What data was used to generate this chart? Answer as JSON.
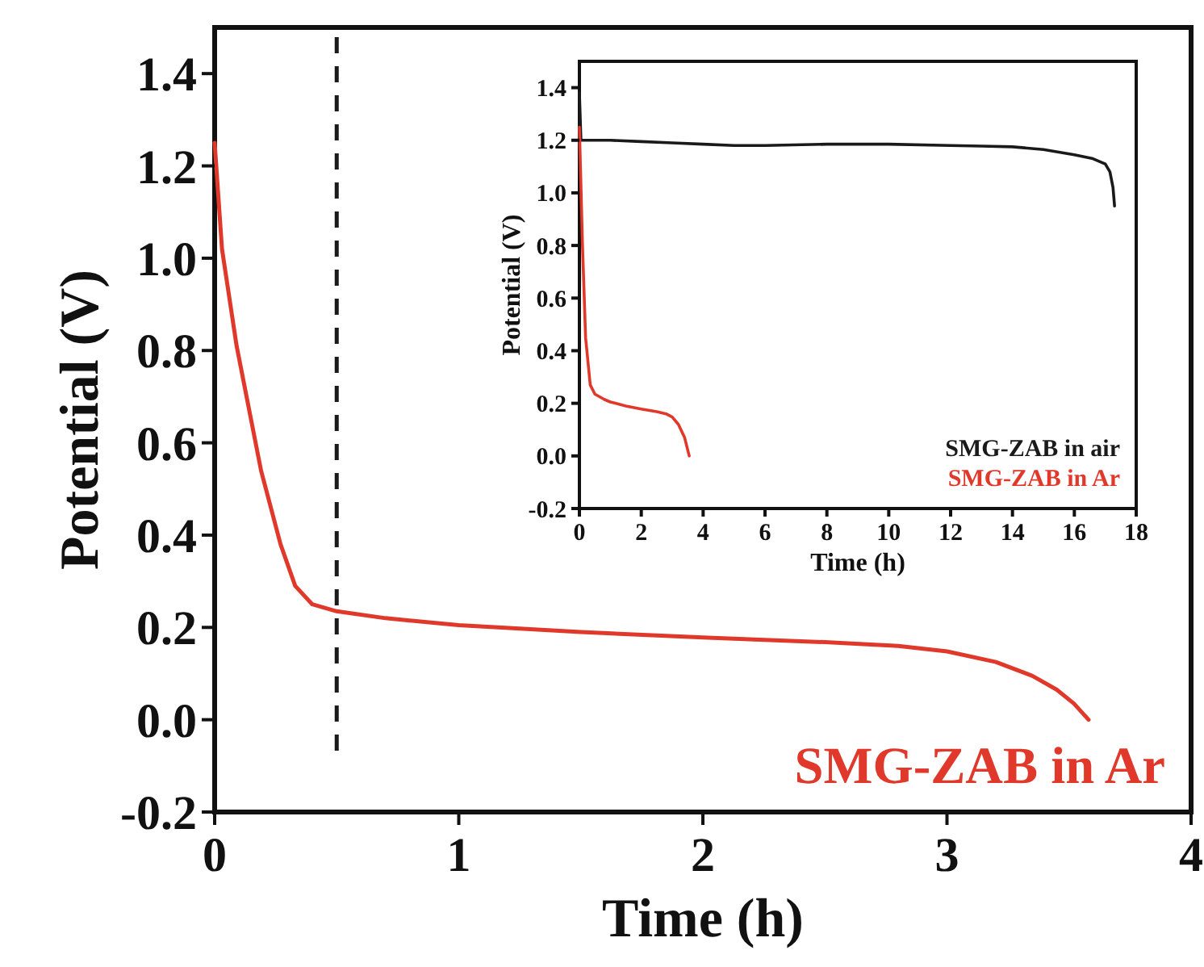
{
  "chart_data": [
    {
      "type": "line",
      "xlabel": "Time (h)",
      "ylabel": "Potential (V)",
      "xlim": [
        0,
        4
      ],
      "ylim": [
        -0.2,
        1.5
      ],
      "xticks": [
        0,
        1,
        2,
        3,
        4
      ],
      "yticks": [
        {
          "value": -0.2,
          "label": "-0.2"
        },
        {
          "value": 0,
          "label": "0.0"
        },
        {
          "value": 0.2,
          "label": "0.2"
        },
        {
          "value": 0.4,
          "label": "0.4"
        },
        {
          "value": 0.6,
          "label": "0.6"
        },
        {
          "value": 0.8,
          "label": "0.8"
        },
        {
          "value": 1,
          "label": "1.0"
        },
        {
          "value": 1.2,
          "label": "1.2"
        },
        {
          "value": 1.4,
          "label": "1.4"
        }
      ],
      "legend": false,
      "grid": false,
      "marker": "none",
      "line_style": "solid",
      "ref_lines": [
        {
          "axis": "x",
          "value": 0.5,
          "color": "#1a1a1a",
          "line_style": "dashed"
        }
      ],
      "series": [
        {
          "name": "SMG-ZAB in Ar",
          "color": "#e0392b",
          "x": [
            0,
            0.03,
            0.09,
            0.19,
            0.27,
            0.33,
            0.4,
            0.5,
            0.7,
            1,
            1.5,
            2,
            2.5,
            2.8,
            3,
            3.2,
            3.35,
            3.45,
            3.52,
            3.58
          ],
          "values": [
            1.25,
            1.02,
            0.81,
            0.54,
            0.38,
            0.29,
            0.25,
            0.235,
            0.22,
            0.205,
            0.19,
            0.178,
            0.168,
            0.16,
            0.148,
            0.125,
            0.095,
            0.065,
            0.035,
            0
          ]
        }
      ]
    },
    {
      "type": "line",
      "xlabel": "Time (h)",
      "ylabel": "Potential (V)",
      "xlim": [
        0,
        18
      ],
      "ylim": [
        -0.2,
        1.5
      ],
      "xticks": [
        0,
        2,
        4,
        6,
        8,
        10,
        12,
        14,
        16,
        18
      ],
      "yticks": [
        {
          "value": -0.2,
          "label": "-0.2"
        },
        {
          "value": 0,
          "label": "0.0"
        },
        {
          "value": 0.2,
          "label": "0.2"
        },
        {
          "value": 0.4,
          "label": "0.4"
        },
        {
          "value": 0.6,
          "label": "0.6"
        },
        {
          "value": 0.8,
          "label": "0.8"
        },
        {
          "value": 1,
          "label": "1.0"
        },
        {
          "value": 1.2,
          "label": "1.2"
        },
        {
          "value": 1.4,
          "label": "1.4"
        }
      ],
      "legend": "bottom right",
      "grid": false,
      "marker": "none",
      "line_style": "solid",
      "series": [
        {
          "name": "SMG-ZAB in air",
          "color": "#1a1a1a",
          "x": [
            0,
            0.05,
            0.5,
            1,
            2,
            3,
            4,
            5,
            6,
            8,
            10,
            12,
            13,
            14,
            15,
            16,
            16.6,
            17,
            17.15,
            17.25,
            17.3
          ],
          "values": [
            1.38,
            1.2,
            1.2,
            1.2,
            1.195,
            1.19,
            1.185,
            1.18,
            1.18,
            1.185,
            1.185,
            1.18,
            1.178,
            1.175,
            1.165,
            1.145,
            1.13,
            1.11,
            1.08,
            1.02,
            0.95
          ]
        },
        {
          "name": "SMG-ZAB in Ar",
          "color": "#e0392b",
          "x": [
            0,
            0.1,
            0.2,
            0.35,
            0.5,
            0.8,
            1,
            1.5,
            2,
            2.5,
            2.8,
            3,
            3.2,
            3.4,
            3.55
          ],
          "values": [
            1.25,
            0.8,
            0.45,
            0.27,
            0.235,
            0.215,
            0.205,
            0.19,
            0.178,
            0.168,
            0.16,
            0.148,
            0.12,
            0.07,
            0
          ]
        }
      ]
    }
  ]
}
